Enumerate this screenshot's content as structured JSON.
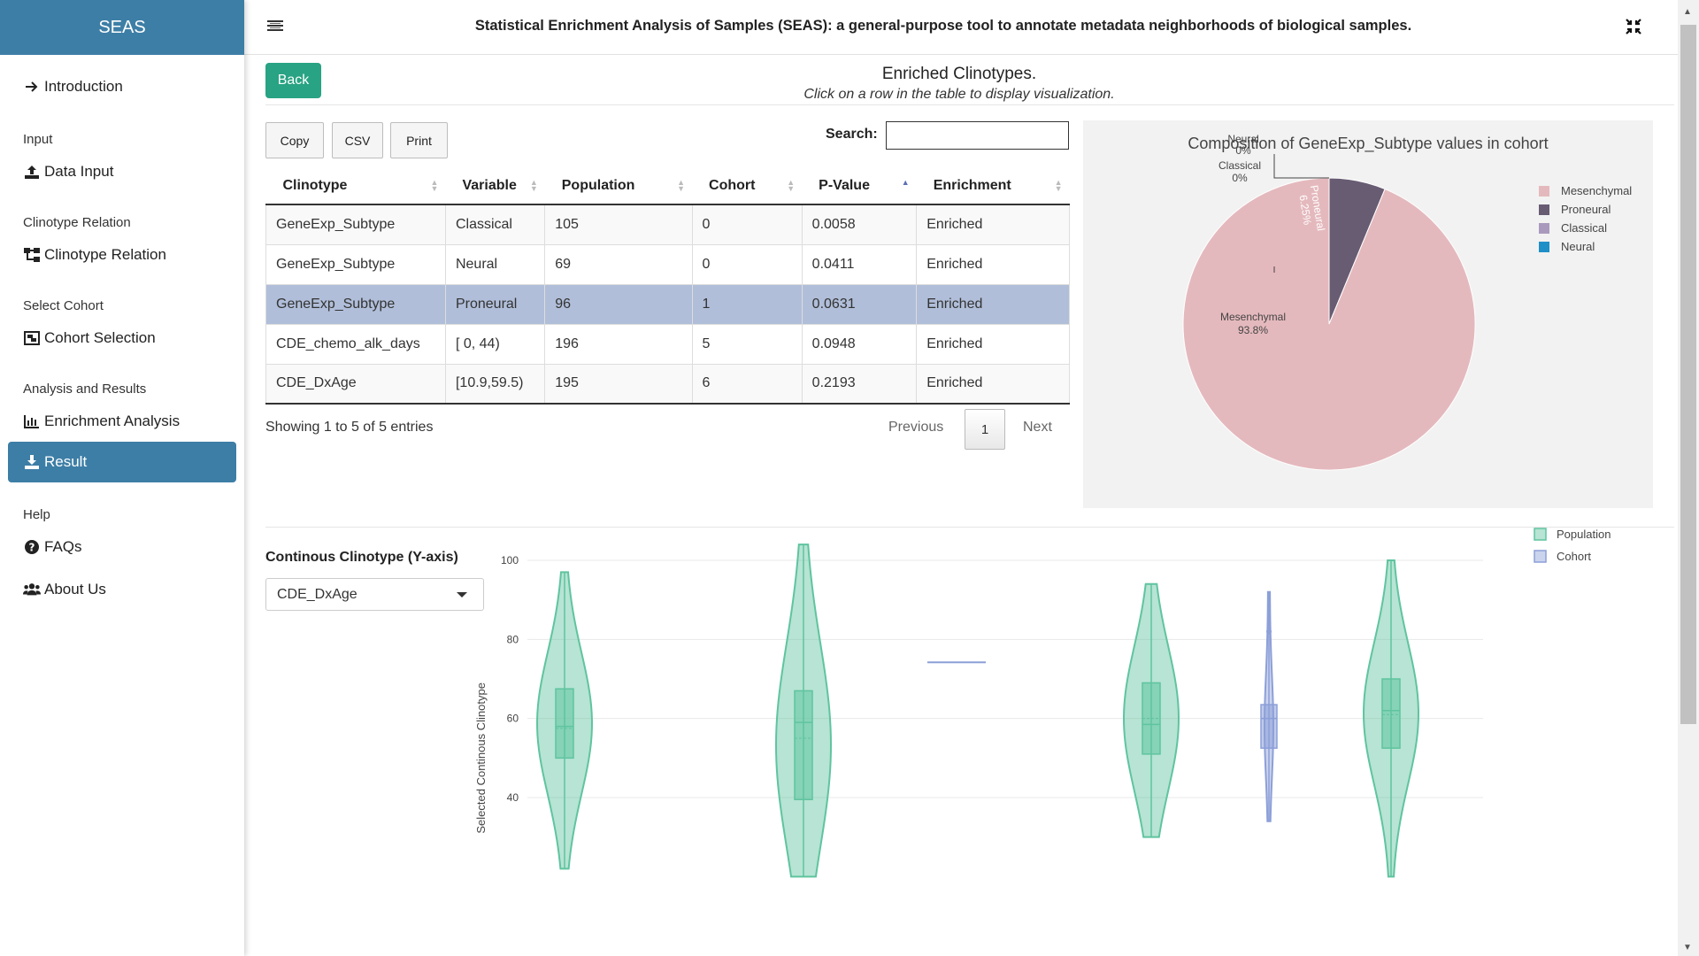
{
  "sidebar": {
    "brand": "SEAS",
    "introduction": "Introduction",
    "sec_input": "Input",
    "data_input": "Data Input",
    "sec_clinotype": "Clinotype Relation",
    "clinotype_relation": "Clinotype Relation",
    "sec_cohort": "Select Cohort",
    "cohort_selection": "Cohort Selection",
    "sec_analysis": "Analysis and Results",
    "enrichment_analysis": "Enrichment Analysis",
    "result": "Result",
    "sec_help": "Help",
    "faqs": "FAQs",
    "about": "About Us",
    "accent": "#3d7ea6"
  },
  "header": {
    "title": "Statistical Enrichment Analysis of Samples (SEAS): a general-purpose tool to annotate metadata neighborhoods of biological samples."
  },
  "main": {
    "back": "Back",
    "title": "Enriched Clinotypes.",
    "subtitle": "Click on a row in the table to display visualization.",
    "copy": "Copy",
    "csv": "CSV",
    "print": "Print",
    "search_label": "Search:",
    "search_value": "",
    "columns": [
      "Clinotype",
      "Variable",
      "Population",
      "Cohort",
      "P-Value",
      "Enrichment"
    ],
    "rows": [
      [
        "GeneExp_Subtype",
        "Classical",
        "105",
        "0",
        "0.0058",
        "Enriched"
      ],
      [
        "GeneExp_Subtype",
        "Neural",
        "69",
        "0",
        "0.0411",
        "Enriched"
      ],
      [
        "GeneExp_Subtype",
        "Proneural",
        "96",
        "1",
        "0.0631",
        "Enriched"
      ],
      [
        "CDE_chemo_alk_days",
        "[ 0, 44)",
        "196",
        "5",
        "0.0948",
        "Enriched"
      ],
      [
        "CDE_DxAge",
        "[10.9,59.5)",
        "195",
        "6",
        "0.2193",
        "Enriched"
      ]
    ],
    "selected_row": 2,
    "info": "Showing 1 to 5 of 5 entries",
    "prev": "Previous",
    "page": "1",
    "next": "Next",
    "cc_label": "Continous Clinotype (Y-axis)",
    "cc_value": "CDE_DxAge",
    "accent": "#28a383"
  },
  "chart_data": [
    {
      "type": "pie",
      "title": "Composition of GeneExp_Subtype values in cohort",
      "labels": [
        "Mesenchymal",
        "Proneural",
        "Classical",
        "Neural"
      ],
      "values": [
        93.8,
        6.25,
        0,
        0
      ],
      "percent_labels": [
        "93.8%",
        "6.25%",
        "0%",
        "0%"
      ],
      "colors": [
        "#e4b9bd",
        "#685c73",
        "#a99abd",
        "#1f8fc8"
      ],
      "legend": "right"
    },
    {
      "type": "violin",
      "ylabel": "Selected Continous Clinotype",
      "yticks": [
        40,
        60,
        80,
        100
      ],
      "ylim": [
        30,
        108
      ],
      "legend": "top-right",
      "series": [
        {
          "name": "Population",
          "color": "#5fc49f"
        },
        {
          "name": "Cohort",
          "color": "#8c9fd8"
        }
      ],
      "groups": [
        {
          "series": 0,
          "min": 22,
          "q1": 50,
          "median": 58,
          "mean": 57.5,
          "q3": 67.5,
          "max": 97
        },
        {
          "series": 0,
          "min": 20,
          "q1": 39.5,
          "median": 59,
          "mean": 55,
          "q3": 67,
          "max": 104
        },
        {
          "series": 1,
          "min": 74.2,
          "q1": 74.2,
          "median": 74.2,
          "mean": 74.2,
          "q3": 74.2,
          "max": 74.2
        },
        {
          "series": 0,
          "min": 30,
          "q1": 51,
          "median": 58.5,
          "mean": 60,
          "q3": 69,
          "max": 94
        },
        {
          "series": 1,
          "min": 34,
          "q1": 52.5,
          "median": 60,
          "mean": 60,
          "q3": 63.5,
          "max": 92,
          "outlier": 82
        },
        {
          "series": 0,
          "min": 20,
          "q1": 52.5,
          "median": 62,
          "mean": 61,
          "q3": 70,
          "max": 100
        }
      ]
    }
  ]
}
